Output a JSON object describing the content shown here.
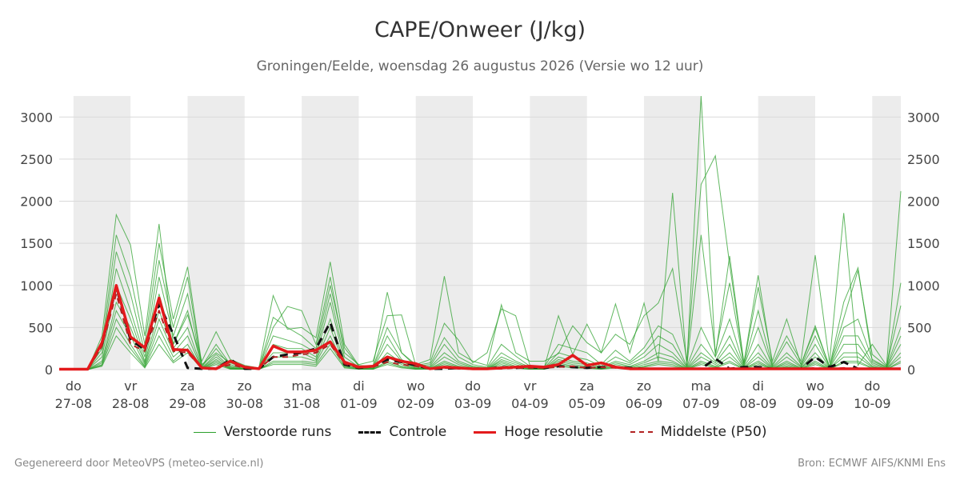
{
  "title": "CAPE/Onweer (J/kg)",
  "subtitle": "Groningen/Eelde, woensdag 26 augustus 2026 (Versie wo 12 uur)",
  "footer": {
    "left": "Gegenereerd door MeteoVPS (meteo-service.nl)",
    "right": "Bron: ECMWF AIFS/KNMI Ens"
  },
  "colors": {
    "ensemble": "#2ca02c",
    "control": "#111111",
    "hires": "#e31a1c",
    "median": "#b22222",
    "night_band": "#ececec",
    "grid": "#d9d9d9"
  },
  "legend": [
    {
      "label": "Verstoorde runs",
      "style": "thin-green"
    },
    {
      "label": "Controle",
      "style": "dashed-black"
    },
    {
      "label": "Hoge resolutie",
      "style": "thick-red"
    },
    {
      "label": "Middelste (P50)",
      "style": "dashed-darkred"
    }
  ],
  "chart_data": {
    "type": "line",
    "x_unit": "days after 27-08-2026 00 UTC",
    "xlim": [
      -0.25,
      14.5
    ],
    "ylim": [
      0,
      3250
    ],
    "yticks": [
      0,
      500,
      1000,
      1500,
      2000,
      2500,
      3000
    ],
    "grid": true,
    "legend_position": "bottom",
    "day_ticks": [
      {
        "x": 0,
        "day": "do",
        "date": "27-08"
      },
      {
        "x": 1,
        "day": "vr",
        "date": "28-08"
      },
      {
        "x": 2,
        "day": "za",
        "date": "29-08"
      },
      {
        "x": 3,
        "day": "zo",
        "date": "30-08"
      },
      {
        "x": 4,
        "day": "ma",
        "date": "31-08"
      },
      {
        "x": 5,
        "day": "di",
        "date": "01-09"
      },
      {
        "x": 6,
        "day": "wo",
        "date": "02-09"
      },
      {
        "x": 7,
        "day": "do",
        "date": "03-09"
      },
      {
        "x": 8,
        "day": "vr",
        "date": "04-09"
      },
      {
        "x": 9,
        "day": "za",
        "date": "05-09"
      },
      {
        "x": 10,
        "day": "zo",
        "date": "06-09"
      },
      {
        "x": 11,
        "day": "ma",
        "date": "07-09"
      },
      {
        "x": 12,
        "day": "di",
        "date": "08-09"
      },
      {
        "x": 13,
        "day": "wo",
        "date": "09-09"
      },
      {
        "x": 14,
        "day": "do",
        "date": "10-09"
      }
    ],
    "shaded_bands": [
      [
        0,
        1
      ],
      [
        2,
        3
      ],
      [
        4,
        5
      ],
      [
        6,
        7
      ],
      [
        8,
        9
      ],
      [
        10,
        11
      ],
      [
        12,
        13
      ],
      [
        14,
        14.5
      ]
    ],
    "series": [
      {
        "name": "Hoge resolutie",
        "style": "thick-red",
        "x": [
          -0.25,
          0,
          0.25,
          0.5,
          0.75,
          1,
          1.25,
          1.5,
          1.75,
          2,
          2.25,
          2.5,
          2.75,
          3,
          3.25,
          3.5,
          3.75,
          4,
          4.25,
          4.5,
          4.75,
          5,
          5.25,
          5.5,
          5.75,
          6,
          6.25,
          6.5,
          6.75,
          7,
          7.25,
          7.5,
          7.75,
          8,
          8.25,
          8.5,
          8.75,
          9,
          9.25,
          9.5,
          9.75,
          10,
          10.25,
          10.5,
          10.75,
          11,
          11.25,
          11.5,
          11.75,
          12,
          12.25,
          12.5,
          12.75,
          13,
          13.25,
          13.5,
          13.75,
          14,
          14.25,
          14.5
        ],
        "values": [
          5,
          5,
          5,
          320,
          1000,
          390,
          260,
          850,
          240,
          230,
          20,
          10,
          100,
          30,
          10,
          280,
          210,
          210,
          230,
          330,
          90,
          30,
          40,
          150,
          100,
          70,
          10,
          30,
          20,
          10,
          10,
          20,
          30,
          40,
          30,
          60,
          170,
          50,
          80,
          30,
          10,
          10,
          10,
          10,
          10,
          10,
          10,
          10,
          10,
          10,
          10,
          10,
          10,
          10,
          10,
          10,
          10,
          10,
          10,
          10
        ]
      },
      {
        "name": "Controle",
        "style": "dashed-black",
        "x": [
          -0.25,
          0,
          0.25,
          0.5,
          0.75,
          1,
          1.25,
          1.5,
          1.75,
          2,
          2.25,
          2.5,
          2.75,
          3,
          3.25,
          3.5,
          3.75,
          4,
          4.25,
          4.5,
          4.75,
          5,
          5.25,
          5.5,
          5.75,
          6,
          6.25,
          6.5,
          6.75,
          7,
          7.25,
          7.5,
          7.75,
          8,
          8.25,
          8.5,
          8.75,
          9,
          9.25,
          9.5,
          9.75,
          10,
          10.25,
          10.5,
          10.75,
          11,
          11.25,
          11.5,
          11.75,
          12,
          12.25,
          12.5,
          12.75,
          13,
          13.25,
          13.5,
          13.75,
          14,
          14.25,
          14.5
        ],
        "values": [
          5,
          5,
          5,
          300,
          980,
          350,
          240,
          780,
          420,
          20,
          10,
          10,
          120,
          10,
          10,
          150,
          180,
          200,
          250,
          560,
          60,
          20,
          40,
          120,
          90,
          50,
          10,
          10,
          20,
          10,
          10,
          30,
          20,
          30,
          20,
          40,
          30,
          20,
          30,
          30,
          20,
          10,
          10,
          10,
          10,
          10,
          130,
          10,
          30,
          30,
          10,
          10,
          10,
          150,
          30,
          90,
          10,
          10,
          10,
          10
        ]
      },
      {
        "name": "Middelste (P50)",
        "style": "dashed-darkred",
        "x": [
          -0.25,
          0,
          0.25,
          0.5,
          0.75,
          1,
          1.25,
          1.5,
          1.75,
          2,
          2.25,
          2.5,
          2.75,
          3,
          3.25,
          3.5,
          3.75,
          4,
          4.25,
          4.5,
          4.75,
          5,
          5.25,
          5.5,
          5.75,
          6,
          6.25,
          6.5,
          6.75,
          7,
          7.25,
          7.5,
          7.75,
          8,
          8.25,
          8.5,
          8.75,
          9,
          9.25,
          9.5,
          9.75,
          10,
          10.25,
          10.5,
          10.75,
          11,
          11.25,
          11.5,
          11.75,
          12,
          12.25,
          12.5,
          12.75,
          13,
          13.25,
          13.5,
          13.75,
          14,
          14.25,
          14.5
        ],
        "values": [
          5,
          5,
          5,
          280,
          900,
          300,
          220,
          700,
          220,
          200,
          20,
          10,
          60,
          20,
          10,
          150,
          150,
          180,
          200,
          300,
          70,
          20,
          30,
          90,
          60,
          40,
          10,
          20,
          10,
          10,
          10,
          10,
          20,
          20,
          20,
          30,
          40,
          20,
          30,
          20,
          10,
          10,
          10,
          10,
          10,
          10,
          20,
          10,
          10,
          10,
          10,
          10,
          10,
          20,
          10,
          20,
          10,
          10,
          10,
          10
        ]
      },
      {
        "name": "Verstoorde runs",
        "style": "thin-green",
        "x": [
          -0.25,
          0,
          0.25,
          0.5,
          0.75,
          1,
          1.25,
          1.5,
          1.75,
          2,
          2.25,
          2.5,
          2.75,
          3,
          3.25,
          3.5,
          3.75,
          4,
          4.25,
          4.5,
          4.75,
          5,
          5.25,
          5.5,
          5.75,
          6,
          6.25,
          6.5,
          6.75,
          7,
          7.25,
          7.5,
          7.75,
          8,
          8.25,
          8.5,
          8.75,
          9,
          9.25,
          9.5,
          9.75,
          10,
          10.25,
          10.5,
          10.75,
          11,
          11.25,
          11.5,
          11.75,
          12,
          12.25,
          12.5,
          12.75,
          13,
          13.25,
          13.5,
          13.75,
          14,
          14.25,
          14.5
        ],
        "values_members": [
          [
            0,
            0,
            0,
            400,
            1840,
            1480,
            400,
            1730,
            300,
            650,
            100,
            450,
            120,
            50,
            20,
            880,
            480,
            500,
            380,
            1280,
            300,
            50,
            40,
            920,
            200,
            60,
            120,
            1110,
            200,
            100,
            50,
            770,
            200,
            100,
            100,
            190,
            520,
            320,
            200,
            780,
            200,
            790,
            100,
            2100,
            50,
            3250,
            160,
            1350,
            80,
            1120,
            60,
            400,
            100,
            1360,
            80,
            1860,
            50,
            300,
            50,
            2120
          ],
          [
            0,
            0,
            0,
            300,
            1600,
            1100,
            300,
            1500,
            600,
            1220,
            60,
            200,
            80,
            20,
            10,
            500,
            750,
            700,
            300,
            1100,
            200,
            60,
            100,
            640,
            650,
            50,
            80,
            550,
            350,
            80,
            200,
            720,
            640,
            50,
            20,
            640,
            180,
            540,
            200,
            420,
            300,
            640,
            790,
            1200,
            100,
            2200,
            2540,
            1250,
            70,
            980,
            100,
            600,
            60,
            520,
            30,
            800,
            1210,
            100,
            30,
            1030
          ],
          [
            0,
            0,
            0,
            250,
            1400,
            900,
            200,
            1300,
            500,
            1100,
            40,
            300,
            60,
            10,
            5,
            620,
            500,
            400,
            250,
            1000,
            260,
            40,
            30,
            500,
            200,
            40,
            60,
            380,
            150,
            60,
            30,
            300,
            160,
            40,
            30,
            300,
            250,
            200,
            60,
            230,
            100,
            260,
            520,
            420,
            40,
            1600,
            200,
            1030,
            50,
            700,
            40,
            330,
            60,
            490,
            40,
            610,
            1180,
            180,
            40,
            760
          ],
          [
            0,
            0,
            0,
            200,
            1200,
            700,
            150,
            1100,
            400,
            900,
            30,
            250,
            40,
            10,
            5,
            400,
            350,
            300,
            200,
            900,
            150,
            30,
            20,
            400,
            120,
            30,
            40,
            300,
            100,
            40,
            20,
            200,
            100,
            30,
            20,
            200,
            150,
            120,
            40,
            150,
            80,
            200,
            400,
            300,
            30,
            500,
            150,
            600,
            40,
            500,
            30,
            200,
            40,
            400,
            30,
            500,
            600,
            120,
            30,
            500
          ],
          [
            0,
            0,
            0,
            150,
            1000,
            600,
            100,
            900,
            300,
            700,
            20,
            180,
            30,
            5,
            5,
            300,
            250,
            250,
            150,
            800,
            100,
            20,
            15,
            300,
            100,
            20,
            30,
            200,
            80,
            30,
            15,
            150,
            80,
            20,
            15,
            150,
            100,
            80,
            30,
            100,
            60,
            150,
            300,
            200,
            20,
            300,
            100,
            400,
            30,
            300,
            20,
            150,
            30,
            300,
            20,
            400,
            400,
            80,
            20,
            400
          ],
          [
            0,
            0,
            0,
            100,
            800,
            500,
            80,
            700,
            250,
            500,
            15,
            150,
            20,
            5,
            5,
            200,
            200,
            200,
            120,
            600,
            80,
            15,
            10,
            200,
            80,
            15,
            20,
            150,
            60,
            20,
            10,
            120,
            60,
            15,
            10,
            120,
            80,
            60,
            20,
            80,
            40,
            100,
            200,
            150,
            15,
            200,
            80,
            300,
            20,
            200,
            15,
            100,
            20,
            200,
            15,
            300,
            300,
            60,
            15,
            300
          ],
          [
            0,
            0,
            0,
            80,
            700,
            400,
            60,
            600,
            200,
            400,
            10,
            120,
            15,
            5,
            5,
            150,
            150,
            150,
            100,
            500,
            60,
            10,
            10,
            150,
            60,
            10,
            15,
            100,
            40,
            15,
            10,
            100,
            40,
            10,
            10,
            100,
            60,
            40,
            15,
            60,
            30,
            80,
            150,
            100,
            10,
            150,
            60,
            200,
            15,
            150,
            10,
            80,
            15,
            150,
            10,
            200,
            200,
            40,
            10,
            200
          ],
          [
            0,
            0,
            0,
            60,
            600,
            300,
            40,
            500,
            150,
            300,
            10,
            100,
            10,
            5,
            5,
            100,
            100,
            100,
            80,
            400,
            40,
            10,
            5,
            100,
            40,
            10,
            10,
            80,
            30,
            10,
            5,
            80,
            30,
            10,
            5,
            80,
            40,
            30,
            10,
            40,
            20,
            60,
            100,
            80,
            10,
            100,
            40,
            150,
            10,
            100,
            10,
            60,
            10,
            100,
            10,
            150,
            150,
            30,
            10,
            150
          ],
          [
            0,
            0,
            0,
            50,
            500,
            250,
            30,
            400,
            100,
            250,
            5,
            80,
            10,
            5,
            5,
            80,
            80,
            80,
            60,
            300,
            30,
            5,
            5,
            80,
            30,
            5,
            10,
            60,
            20,
            10,
            5,
            60,
            20,
            5,
            5,
            60,
            30,
            20,
            10,
            30,
            15,
            40,
            80,
            60,
            5,
            80,
            30,
            100,
            10,
            80,
            5,
            40,
            10,
            80,
            5,
            100,
            100,
            20,
            5,
            100
          ],
          [
            0,
            0,
            0,
            40,
            400,
            200,
            20,
            300,
            80,
            200,
            5,
            60,
            5,
            5,
            5,
            60,
            60,
            60,
            40,
            250,
            20,
            5,
            5,
            60,
            20,
            5,
            5,
            40,
            15,
            5,
            5,
            40,
            15,
            5,
            5,
            40,
            20,
            15,
            5,
            20,
            10,
            30,
            60,
            40,
            5,
            60,
            20,
            80,
            5,
            60,
            5,
            30,
            5,
            60,
            5,
            80,
            80,
            15,
            5,
            80
          ]
        ]
      }
    ]
  }
}
